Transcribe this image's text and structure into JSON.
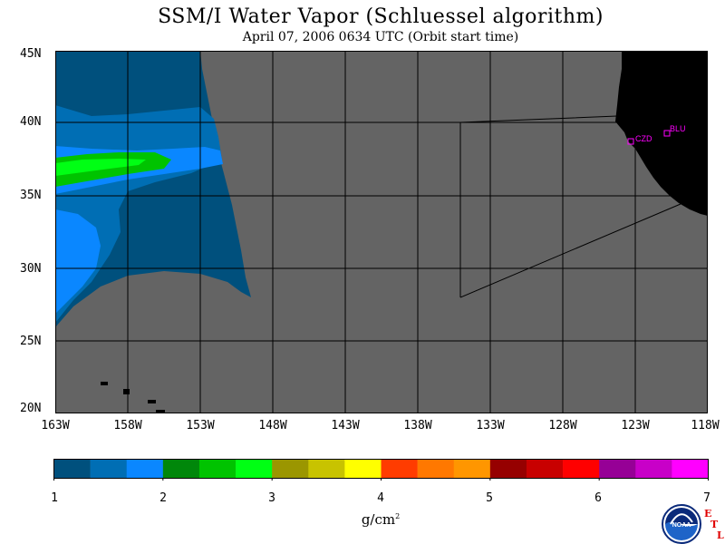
{
  "title": "SSM/I Water Vapor (Schluessel algorithm)",
  "subtitle": "April 07, 2006  0634 UTC  (Orbit start time)",
  "lat_labels": [
    "45N",
    "40N",
    "35N",
    "30N",
    "25N",
    "20N"
  ],
  "lon_labels": [
    "163W",
    "158W",
    "153W",
    "148W",
    "143W",
    "138W",
    "133W",
    "128W",
    "123W",
    "118W"
  ],
  "stations": [
    {
      "id": "CZD",
      "label": "CZD",
      "lat": 38.6,
      "lon": -123.2
    },
    {
      "id": "BLU",
      "label": "BLU",
      "lat": 39.3,
      "lon": -120.7
    }
  ],
  "colorbar": {
    "min": 1,
    "max": 7,
    "tick_labels": [
      "1",
      "2",
      "3",
      "4",
      "5",
      "6",
      "7"
    ],
    "colors": [
      "#00507d",
      "#006eb4",
      "#0a87ff",
      "#00870a",
      "#00c300",
      "#00ff14",
      "#9b9600",
      "#c8c300",
      "#ffff00",
      "#ff3c00",
      "#ff7800",
      "#ff9600",
      "#960000",
      "#c80000",
      "#ff0000",
      "#960096",
      "#c800c8",
      "#ff00ff"
    ],
    "units": "g/cm",
    "units_exp": "2"
  },
  "map_colors": {
    "no_data": "#646464",
    "land": "#000000",
    "grid": "#000000",
    "station": "#ff00ff"
  },
  "logo": {
    "text": "NOAA",
    "etl_letters": [
      "E",
      "T",
      "L"
    ]
  }
}
